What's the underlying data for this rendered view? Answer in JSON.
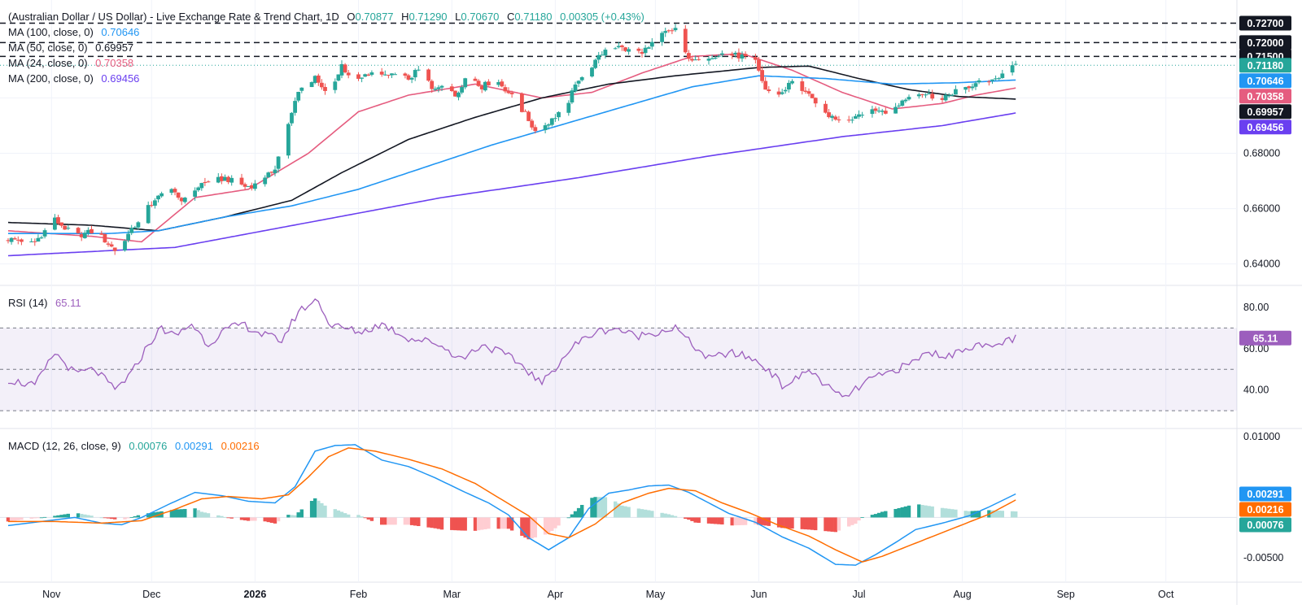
{
  "header": {
    "title": "(Australian Dollar / US Dollar) - Live Exchange Rate & Trend Chart, 1D",
    "ohlc": [
      {
        "label": "O",
        "value": "0.70877"
      },
      {
        "label": "H",
        "value": "0.71290"
      },
      {
        "label": "L",
        "value": "0.70670"
      },
      {
        "label": "C",
        "value": "0.71180"
      }
    ],
    "change": "0.00305 (+0.43%)"
  },
  "ma_legend": [
    {
      "label": "MA (100, close, 0)",
      "value": "0.70646",
      "color": "#2196f3"
    },
    {
      "label": "MA (50, close, 0)",
      "value": "0.69957",
      "color": "#131722"
    },
    {
      "label": "MA (24, close, 0)",
      "value": "0.70358",
      "color": "#e55c7f"
    },
    {
      "label": "MA (200, close, 0)",
      "value": "0.69456",
      "color": "#6a3ff0"
    }
  ],
  "rsi_legend": {
    "label": "RSI (14)",
    "value": "65.11",
    "color": "#9c5ebd"
  },
  "macd_legend": {
    "label": "MACD (12, 26, close, 9)",
    "values": [
      {
        "value": "0.00076",
        "color": "#26a69a"
      },
      {
        "value": "0.00291",
        "color": "#2196f3"
      },
      {
        "value": "0.00216",
        "color": "#ff6d00"
      }
    ]
  },
  "x_axis": {
    "labels": [
      {
        "text": "Nov",
        "day": 13,
        "bold": false
      },
      {
        "text": "Dec",
        "day": 43,
        "bold": false
      },
      {
        "text": "2026",
        "day": 74,
        "bold": true
      },
      {
        "text": "Feb",
        "day": 105,
        "bold": false
      },
      {
        "text": "Mar",
        "day": 133,
        "bold": false
      },
      {
        "text": "Apr",
        "day": 164,
        "bold": false
      },
      {
        "text": "May",
        "day": 194,
        "bold": false
      },
      {
        "text": "Jun",
        "day": 225,
        "bold": false
      },
      {
        "text": "Jul",
        "day": 255,
        "bold": false
      },
      {
        "text": "Aug",
        "day": 286,
        "bold": false
      },
      {
        "text": "Sep",
        "day": 317,
        "bold": false
      },
      {
        "text": "Oct",
        "day": 347,
        "bold": false
      }
    ]
  },
  "price_axis": {
    "ticks": [
      "0.64000",
      "0.66000",
      "0.68000"
    ],
    "levels": [
      {
        "value": "0.72700",
        "bg": "#131722",
        "fg": "#ffffff"
      },
      {
        "value": "0.72000",
        "bg": "#131722",
        "fg": "#ffffff"
      },
      {
        "value": "0.71500",
        "bg": "#131722",
        "fg": "#ffffff"
      }
    ],
    "last_labels": [
      {
        "value": "0.71180",
        "bg": "#26a69a",
        "fg": "#ffffff"
      },
      {
        "value": "0.70646",
        "bg": "#2196f3",
        "fg": "#ffffff"
      },
      {
        "value": "0.70358",
        "bg": "#e55c7f",
        "fg": "#ffffff"
      },
      {
        "value": "0.69957",
        "bg": "#131722",
        "fg": "#ffffff"
      },
      {
        "value": "0.69456",
        "bg": "#6a3ff0",
        "fg": "#ffffff"
      }
    ]
  },
  "rsi_axis": {
    "ticks": [
      "80.00",
      "60.00",
      "40.00"
    ],
    "last": {
      "value": "65.11",
      "bg": "#9c5ebd",
      "fg": "#ffffff"
    }
  },
  "macd_axis": {
    "ticks": [
      "0.01000",
      "-0.00500"
    ],
    "last_labels": [
      {
        "value": "0.00291",
        "bg": "#2196f3",
        "fg": "#ffffff"
      },
      {
        "value": "0.00216",
        "bg": "#ff6d00",
        "fg": "#ffffff"
      },
      {
        "value": "0.00076",
        "bg": "#26a69a",
        "fg": "#ffffff"
      }
    ]
  },
  "colors": {
    "up": "#26a69a",
    "down": "#ef5350",
    "grid": "#f0f3fa",
    "axis_text": "#131722",
    "rsi_band": "#7e57c2",
    "macd_line": "#2196f3",
    "signal_line": "#ff6d00",
    "hist_up_strong": "#26a69a",
    "hist_up_weak": "#b2dfdb",
    "hist_down_strong": "#ef5350",
    "hist_down_weak": "#ffcdd2"
  },
  "chart_data": {
    "type": "line",
    "title": "(Australian Dollar / US Dollar) - Live Exchange Rate & Trend Chart, 1D",
    "xlabel": "",
    "ylabel": "",
    "price_range": [
      0.6355,
      0.7295
    ],
    "support_resistance": [
      0.727,
      0.72,
      0.715
    ],
    "close_anchors": [
      [
        0,
        0.649
      ],
      [
        8,
        0.648
      ],
      [
        14,
        0.656
      ],
      [
        20,
        0.65
      ],
      [
        26,
        0.652
      ],
      [
        32,
        0.645
      ],
      [
        37,
        0.652
      ],
      [
        42,
        0.661
      ],
      [
        48,
        0.667
      ],
      [
        52,
        0.663
      ],
      [
        58,
        0.669
      ],
      [
        65,
        0.671
      ],
      [
        71,
        0.668
      ],
      [
        76,
        0.669
      ],
      [
        80,
        0.675
      ],
      [
        84,
        0.69
      ],
      [
        87,
        0.703
      ],
      [
        92,
        0.707
      ],
      [
        96,
        0.7
      ],
      [
        100,
        0.712
      ],
      [
        104,
        0.705
      ],
      [
        108,
        0.709
      ],
      [
        114,
        0.708
      ],
      [
        120,
        0.707
      ],
      [
        124,
        0.711
      ],
      [
        127,
        0.703
      ],
      [
        131,
        0.706
      ],
      [
        134,
        0.701
      ],
      [
        138,
        0.709
      ],
      [
        142,
        0.704
      ],
      [
        146,
        0.707
      ],
      [
        150,
        0.702
      ],
      [
        155,
        0.694
      ],
      [
        158,
        0.688
      ],
      [
        163,
        0.692
      ],
      [
        168,
        0.699
      ],
      [
        171,
        0.707
      ],
      [
        176,
        0.713
      ],
      [
        180,
        0.719
      ],
      [
        184,
        0.718
      ],
      [
        188,
        0.716
      ],
      [
        192,
        0.718
      ],
      [
        196,
        0.723
      ],
      [
        200,
        0.725
      ],
      [
        203,
        0.716
      ],
      [
        206,
        0.713
      ],
      [
        210,
        0.715
      ],
      [
        214,
        0.716
      ],
      [
        220,
        0.715
      ],
      [
        224,
        0.713
      ],
      [
        227,
        0.703
      ],
      [
        231,
        0.701
      ],
      [
        235,
        0.706
      ],
      [
        239,
        0.702
      ],
      [
        243,
        0.696
      ],
      [
        247,
        0.693
      ],
      [
        252,
        0.692
      ],
      [
        256,
        0.695
      ],
      [
        260,
        0.696
      ],
      [
        264,
        0.694
      ],
      [
        268,
        0.699
      ],
      [
        272,
        0.702
      ],
      [
        276,
        0.701
      ],
      [
        280,
        0.699
      ],
      [
        284,
        0.703
      ],
      [
        288,
        0.704
      ],
      [
        292,
        0.706
      ],
      [
        296,
        0.707
      ],
      [
        299,
        0.709
      ],
      [
        302,
        0.7118
      ]
    ],
    "moving_averages": [
      {
        "name": "MA (24, close, 0)",
        "color": "#e55c7f",
        "points": [
          [
            0,
            0.652
          ],
          [
            25,
            0.65
          ],
          [
            40,
            0.648
          ],
          [
            56,
            0.664
          ],
          [
            72,
            0.667
          ],
          [
            90,
            0.68
          ],
          [
            105,
            0.695
          ],
          [
            120,
            0.701
          ],
          [
            140,
            0.705
          ],
          [
            160,
            0.7
          ],
          [
            175,
            0.702
          ],
          [
            190,
            0.709
          ],
          [
            205,
            0.715
          ],
          [
            220,
            0.716
          ],
          [
            235,
            0.71
          ],
          [
            250,
            0.702
          ],
          [
            265,
            0.696
          ],
          [
            280,
            0.698
          ],
          [
            290,
            0.701
          ],
          [
            302,
            0.70358
          ]
        ]
      },
      {
        "name": "MA (50, close, 0)",
        "color": "#131722",
        "points": [
          [
            0,
            0.655
          ],
          [
            25,
            0.654
          ],
          [
            45,
            0.652
          ],
          [
            65,
            0.657
          ],
          [
            85,
            0.663
          ],
          [
            100,
            0.673
          ],
          [
            120,
            0.685
          ],
          [
            140,
            0.693
          ],
          [
            160,
            0.7
          ],
          [
            180,
            0.705
          ],
          [
            200,
            0.708
          ],
          [
            225,
            0.711
          ],
          [
            240,
            0.7115
          ],
          [
            255,
            0.707
          ],
          [
            270,
            0.703
          ],
          [
            285,
            0.7005
          ],
          [
            302,
            0.69957
          ]
        ]
      },
      {
        "name": "MA (100, close, 0)",
        "color": "#2196f3",
        "points": [
          [
            0,
            0.651
          ],
          [
            30,
            0.651
          ],
          [
            45,
            0.652
          ],
          [
            65,
            0.657
          ],
          [
            85,
            0.661
          ],
          [
            105,
            0.667
          ],
          [
            125,
            0.675
          ],
          [
            145,
            0.683
          ],
          [
            165,
            0.69
          ],
          [
            185,
            0.697
          ],
          [
            205,
            0.704
          ],
          [
            225,
            0.708
          ],
          [
            245,
            0.707
          ],
          [
            265,
            0.705
          ],
          [
            285,
            0.7055
          ],
          [
            302,
            0.70646
          ]
        ]
      },
      {
        "name": "MA (200, close, 0)",
        "color": "#6a3ff0",
        "points": [
          [
            0,
            0.643
          ],
          [
            50,
            0.646
          ],
          [
            90,
            0.655
          ],
          [
            130,
            0.664
          ],
          [
            170,
            0.671
          ],
          [
            210,
            0.679
          ],
          [
            250,
            0.686
          ],
          [
            280,
            0.69
          ],
          [
            302,
            0.69456
          ]
        ]
      }
    ],
    "rsi": {
      "name": "RSI (14)",
      "range": [
        23,
        89
      ],
      "bands": [
        70,
        50,
        30
      ],
      "points": [
        [
          0,
          45
        ],
        [
          8,
          42
        ],
        [
          14,
          58
        ],
        [
          20,
          48
        ],
        [
          26,
          50
        ],
        [
          32,
          40
        ],
        [
          37,
          48
        ],
        [
          42,
          62
        ],
        [
          46,
          70
        ],
        [
          50,
          66
        ],
        [
          55,
          72
        ],
        [
          60,
          62
        ],
        [
          64,
          68
        ],
        [
          70,
          72
        ],
        [
          76,
          67
        ],
        [
          82,
          64
        ],
        [
          87,
          78
        ],
        [
          93,
          84
        ],
        [
          96,
          72
        ],
        [
          100,
          70
        ],
        [
          106,
          68
        ],
        [
          112,
          72
        ],
        [
          120,
          65
        ],
        [
          128,
          63
        ],
        [
          136,
          55
        ],
        [
          142,
          62
        ],
        [
          148,
          58
        ],
        [
          154,
          52
        ],
        [
          160,
          43
        ],
        [
          166,
          55
        ],
        [
          170,
          62
        ],
        [
          176,
          68
        ],
        [
          182,
          70
        ],
        [
          188,
          66
        ],
        [
          194,
          68
        ],
        [
          200,
          70
        ],
        [
          205,
          62
        ],
        [
          210,
          55
        ],
        [
          216,
          58
        ],
        [
          222,
          56
        ],
        [
          228,
          50
        ],
        [
          232,
          42
        ],
        [
          236,
          45
        ],
        [
          240,
          50
        ],
        [
          246,
          41
        ],
        [
          250,
          36
        ],
        [
          254,
          40
        ],
        [
          258,
          45
        ],
        [
          262,
          47
        ],
        [
          266,
          50
        ],
        [
          270,
          52
        ],
        [
          274,
          57
        ],
        [
          278,
          58
        ],
        [
          282,
          56
        ],
        [
          286,
          60
        ],
        [
          290,
          62
        ],
        [
          294,
          60
        ],
        [
          298,
          63
        ],
        [
          302,
          65.11
        ]
      ]
    },
    "macd": {
      "name": "MACD (12, 26, close, 9)",
      "range": [
        -0.0076,
        0.0106
      ],
      "points": [
        [
          0,
          -0.001
        ],
        [
          10,
          -0.0005
        ],
        [
          20,
          0.0
        ],
        [
          28,
          -0.0007
        ],
        [
          34,
          -0.0009
        ],
        [
          40,
          0.0
        ],
        [
          48,
          0.0016
        ],
        [
          56,
          0.0031
        ],
        [
          64,
          0.0027
        ],
        [
          72,
          0.002
        ],
        [
          80,
          0.0018
        ],
        [
          86,
          0.0038
        ],
        [
          92,
          0.0082
        ],
        [
          98,
          0.0089
        ],
        [
          104,
          0.009
        ],
        [
          112,
          0.0071
        ],
        [
          120,
          0.0063
        ],
        [
          128,
          0.0049
        ],
        [
          136,
          0.0033
        ],
        [
          144,
          0.0018
        ],
        [
          150,
          0.0003
        ],
        [
          156,
          -0.0025
        ],
        [
          162,
          -0.004
        ],
        [
          168,
          -0.0025
        ],
        [
          174,
          0.0011
        ],
        [
          180,
          0.003
        ],
        [
          186,
          0.0034
        ],
        [
          192,
          0.0039
        ],
        [
          198,
          0.004
        ],
        [
          204,
          0.0031
        ],
        [
          210,
          0.0018
        ],
        [
          216,
          0.0005
        ],
        [
          224,
          -0.0006
        ],
        [
          232,
          -0.0024
        ],
        [
          240,
          -0.0038
        ],
        [
          248,
          -0.0058
        ],
        [
          254,
          -0.0059
        ],
        [
          260,
          -0.0046
        ],
        [
          266,
          -0.0031
        ],
        [
          272,
          -0.0015
        ],
        [
          280,
          -0.0007
        ],
        [
          288,
          0.0002
        ],
        [
          294,
          0.0013
        ],
        [
          302,
          0.00291
        ]
      ]
    },
    "signal": {
      "name": "Signal",
      "points": [
        [
          0,
          -0.0005
        ],
        [
          14,
          -0.0005
        ],
        [
          28,
          -0.0007
        ],
        [
          40,
          -0.0004
        ],
        [
          50,
          0.001
        ],
        [
          58,
          0.0023
        ],
        [
          66,
          0.0026
        ],
        [
          76,
          0.0023
        ],
        [
          84,
          0.0028
        ],
        [
          90,
          0.005
        ],
        [
          96,
          0.0075
        ],
        [
          102,
          0.0086
        ],
        [
          110,
          0.0082
        ],
        [
          120,
          0.0072
        ],
        [
          130,
          0.006
        ],
        [
          140,
          0.0042
        ],
        [
          148,
          0.0022
        ],
        [
          156,
          0.0002
        ],
        [
          162,
          -0.002
        ],
        [
          168,
          -0.0025
        ],
        [
          176,
          -0.0008
        ],
        [
          184,
          0.0018
        ],
        [
          192,
          0.003
        ],
        [
          198,
          0.0036
        ],
        [
          206,
          0.0033
        ],
        [
          214,
          0.0018
        ],
        [
          222,
          0.0006
        ],
        [
          230,
          -0.0008
        ],
        [
          240,
          -0.0023
        ],
        [
          248,
          -0.004
        ],
        [
          256,
          -0.0055
        ],
        [
          262,
          -0.0048
        ],
        [
          270,
          -0.0035
        ],
        [
          278,
          -0.0022
        ],
        [
          286,
          -0.0009
        ],
        [
          294,
          0.0004
        ],
        [
          302,
          0.00216
        ]
      ]
    },
    "histogram_last": 0.00076
  }
}
